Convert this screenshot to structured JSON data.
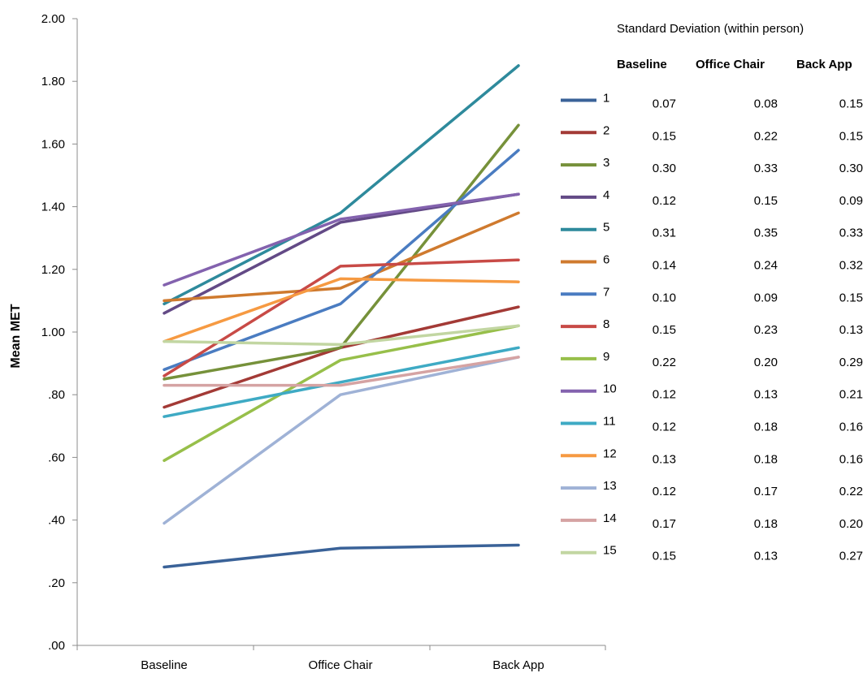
{
  "chart_data": {
    "type": "line",
    "categories": [
      "Baseline",
      "Office Chair",
      "Back App"
    ],
    "ylabel": "Mean MET",
    "xlabel": "",
    "ylim": [
      0,
      2
    ],
    "y_ticks": [
      ".00",
      ".20",
      ".40",
      ".60",
      ".80",
      "1.00",
      "1.20",
      "1.40",
      "1.60",
      "1.80",
      "2.00"
    ],
    "grid": false,
    "legend_position": "right",
    "series": [
      {
        "name": "1",
        "color": "#3a6298",
        "values": [
          0.25,
          0.31,
          0.32
        ]
      },
      {
        "name": "2",
        "color": "#a33a36",
        "values": [
          0.76,
          0.95,
          1.08
        ]
      },
      {
        "name": "3",
        "color": "#76913a",
        "values": [
          0.85,
          0.95,
          1.66
        ]
      },
      {
        "name": "4",
        "color": "#634a86",
        "values": [
          1.06,
          1.35,
          1.44
        ]
      },
      {
        "name": "5",
        "color": "#2e8a9c",
        "values": [
          1.09,
          1.38,
          1.85
        ]
      },
      {
        "name": "6",
        "color": "#cf7a2e",
        "values": [
          1.1,
          1.14,
          1.38
        ]
      },
      {
        "name": "7",
        "color": "#4a7cc1",
        "values": [
          0.88,
          1.09,
          1.58
        ]
      },
      {
        "name": "8",
        "color": "#c84a46",
        "values": [
          0.86,
          1.21,
          1.23
        ]
      },
      {
        "name": "9",
        "color": "#97bf4a",
        "values": [
          0.59,
          0.91,
          1.02
        ]
      },
      {
        "name": "10",
        "color": "#8362ae",
        "values": [
          1.15,
          1.36,
          1.44
        ]
      },
      {
        "name": "11",
        "color": "#3eaac4",
        "values": [
          0.73,
          0.84,
          0.95
        ]
      },
      {
        "name": "12",
        "color": "#f69a42",
        "values": [
          0.97,
          1.17,
          1.16
        ]
      },
      {
        "name": "13",
        "color": "#9fb2d6",
        "values": [
          0.39,
          0.8,
          0.92
        ]
      },
      {
        "name": "14",
        "color": "#d5a3a3",
        "values": [
          0.83,
          0.83,
          0.92
        ]
      },
      {
        "name": "15",
        "color": "#c2d6a2",
        "values": [
          0.97,
          0.96,
          1.02
        ]
      }
    ]
  },
  "sd_table": {
    "title": "Standard Deviation (within person)",
    "headers": [
      "Baseline",
      "Office Chair",
      "Back App"
    ],
    "rows": [
      [
        "0.07",
        "0.08",
        "0.15"
      ],
      [
        "0.15",
        "0.22",
        "0.15"
      ],
      [
        "0.30",
        "0.33",
        "0.30"
      ],
      [
        "0.12",
        "0.15",
        "0.09"
      ],
      [
        "0.31",
        "0.35",
        "0.33"
      ],
      [
        "0.14",
        "0.24",
        "0.32"
      ],
      [
        "0.10",
        "0.09",
        "0.15"
      ],
      [
        "0.15",
        "0.23",
        "0.13"
      ],
      [
        "0.22",
        "0.20",
        "0.29"
      ],
      [
        "0.12",
        "0.13",
        "0.21"
      ],
      [
        "0.12",
        "0.18",
        "0.16"
      ],
      [
        "0.13",
        "0.18",
        "0.16"
      ],
      [
        "0.12",
        "0.17",
        "0.22"
      ],
      [
        "0.17",
        "0.18",
        "0.20"
      ],
      [
        "0.15",
        "0.13",
        "0.27"
      ]
    ]
  }
}
